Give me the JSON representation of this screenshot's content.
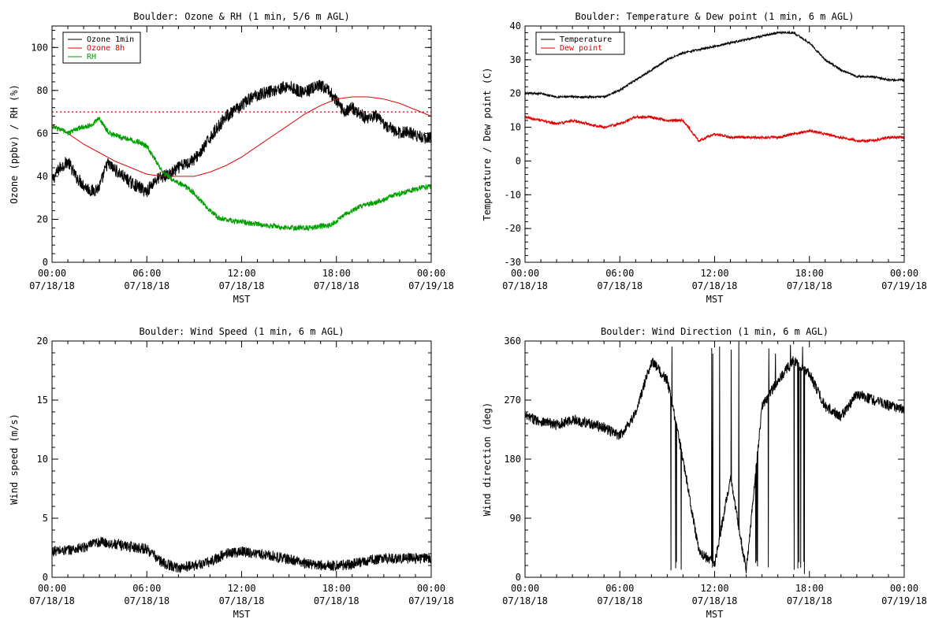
{
  "colors": {
    "ozone1min": "#000000",
    "ozone8h": "#e00000",
    "rh": "#00a000",
    "temperature": "#000000",
    "dewpoint": "#e00000",
    "wind": "#000000",
    "reference": "#e00000"
  },
  "shared": {
    "xticks": [
      {
        "hour": 0,
        "time": "00:00",
        "date": "07/18/18"
      },
      {
        "hour": 6,
        "time": "06:00",
        "date": "07/18/18"
      },
      {
        "hour": 12,
        "time": "12:00",
        "date": "07/18/18"
      },
      {
        "hour": 18,
        "time": "18:00",
        "date": "07/18/18"
      },
      {
        "hour": 24,
        "time": "00:00",
        "date": "07/19/18"
      }
    ],
    "xlabel": "MST",
    "xlim": [
      0,
      24
    ]
  },
  "chart_data": [
    {
      "id": "ozone",
      "type": "line",
      "title": "Boulder: Ozone & RH (1 min, 5/6 m AGL)",
      "ylabel": "Ozone (ppbv) / RH (%)",
      "ylim": [
        0,
        110
      ],
      "yticks": [
        0,
        20,
        40,
        60,
        80,
        100
      ],
      "reference_line": {
        "y": 70,
        "style": "dotted"
      },
      "legend": [
        {
          "name": "Ozone 1min",
          "color": "#000000"
        },
        {
          "name": "Ozone 8h",
          "color": "#e00000"
        },
        {
          "name": "RH",
          "color": "#00a000"
        }
      ],
      "series": [
        {
          "name": "Ozone 1min",
          "color": "#000000",
          "noise": 3,
          "x": [
            0,
            0.5,
            1,
            1.5,
            2,
            2.5,
            3,
            3.5,
            4,
            4.5,
            5,
            5.5,
            6,
            6.5,
            7,
            7.5,
            8,
            8.5,
            9,
            9.5,
            10,
            10.5,
            11,
            11.5,
            12,
            12.5,
            13,
            13.5,
            14,
            14.5,
            15,
            15.5,
            16,
            16.5,
            17,
            17.5,
            18,
            18.5,
            19,
            19.5,
            20,
            20.5,
            21,
            21.5,
            22,
            22.5,
            23,
            23.5,
            24
          ],
          "y": [
            38,
            44,
            47,
            40,
            36,
            33,
            35,
            46,
            43,
            40,
            37,
            35,
            33,
            38,
            40,
            41,
            44,
            46,
            48,
            52,
            58,
            63,
            68,
            70,
            73,
            76,
            78,
            79,
            80,
            81,
            82,
            80,
            79,
            81,
            82,
            80,
            75,
            70,
            72,
            69,
            67,
            68,
            64,
            62,
            60,
            61,
            59,
            58,
            58
          ]
        },
        {
          "name": "Ozone 8h",
          "color": "#e00000",
          "noise": 0,
          "x": [
            0,
            1,
            2,
            3,
            4,
            5,
            6,
            7,
            8,
            9,
            10,
            11,
            12,
            13,
            14,
            15,
            16,
            17,
            18,
            19,
            20,
            21,
            22,
            23,
            24
          ],
          "y": [
            64,
            60,
            55,
            51,
            47,
            44,
            41,
            40,
            40,
            40,
            42,
            45,
            49,
            54,
            59,
            64,
            69,
            73,
            76,
            77,
            77,
            76,
            74,
            71,
            68
          ]
        },
        {
          "name": "RH",
          "color": "#00a000",
          "noise": 1.2,
          "x": [
            0,
            0.5,
            1,
            1.5,
            2,
            2.5,
            3,
            3.5,
            4,
            4.5,
            5,
            5.5,
            6,
            6.5,
            7,
            7.5,
            8,
            8.5,
            9,
            9.5,
            10,
            10.5,
            11,
            11.5,
            12,
            12.5,
            13,
            13.5,
            14,
            14.5,
            15,
            15.5,
            16,
            16.5,
            17,
            17.5,
            18,
            18.5,
            19,
            19.5,
            20,
            20.5,
            21,
            21.5,
            22,
            22.5,
            23,
            23.5,
            24
          ],
          "y": [
            63,
            62,
            60,
            62,
            63,
            64,
            67,
            61,
            59,
            58,
            57,
            56,
            54,
            48,
            42,
            39,
            37,
            35,
            32,
            28,
            24,
            21,
            20,
            19,
            19,
            18,
            18,
            17,
            17,
            16,
            16,
            16,
            16,
            16,
            17,
            17,
            19,
            22,
            24,
            26,
            27,
            28,
            29,
            31,
            32,
            33,
            34,
            35,
            35
          ]
        }
      ]
    },
    {
      "id": "temp",
      "type": "line",
      "title": "Boulder: Temperature & Dew point (1 min, 6 m AGL)",
      "ylabel": "Temperature / Dew point (C)",
      "ylim": [
        -30,
        40
      ],
      "yticks": [
        -30,
        -20,
        -10,
        0,
        10,
        20,
        30,
        40
      ],
      "legend": [
        {
          "name": "Temperature",
          "color": "#000000"
        },
        {
          "name": "Dew point",
          "color": "#e00000"
        }
      ],
      "series": [
        {
          "name": "Temperature",
          "color": "#000000",
          "noise": 0.3,
          "x": [
            0,
            1,
            2,
            3,
            4,
            5,
            6,
            7,
            8,
            9,
            10,
            11,
            12,
            13,
            14,
            15,
            16,
            17,
            18,
            19,
            20,
            21,
            22,
            23,
            24
          ],
          "y": [
            20,
            20,
            19,
            19,
            19,
            19,
            21,
            24,
            27,
            30,
            32,
            33,
            34,
            35,
            36,
            37,
            38,
            38,
            35,
            30,
            27,
            25,
            25,
            24,
            24
          ]
        },
        {
          "name": "Dew point",
          "color": "#e00000",
          "noise": 0.4,
          "x": [
            0,
            1,
            2,
            3,
            4,
            5,
            6,
            7,
            8,
            9,
            10,
            11,
            12,
            13,
            14,
            15,
            16,
            17,
            18,
            19,
            20,
            21,
            22,
            23,
            24
          ],
          "y": [
            13,
            12,
            11,
            12,
            11,
            10,
            11,
            13,
            13,
            12,
            12,
            6,
            8,
            7,
            7,
            7,
            7,
            8,
            9,
            8,
            7,
            6,
            6,
            7,
            7
          ]
        }
      ]
    },
    {
      "id": "wspd",
      "type": "line",
      "title": "Boulder: Wind Speed (1 min, 6 m AGL)",
      "ylabel": "Wind speed (m/s)",
      "ylim": [
        0,
        20
      ],
      "yticks": [
        0,
        5,
        10,
        15,
        20
      ],
      "legend": [],
      "series": [
        {
          "name": "",
          "color": "#000000",
          "noise": 0.45,
          "x": [
            0,
            1,
            2,
            3,
            4,
            5,
            6,
            7,
            8,
            9,
            10,
            11,
            12,
            13,
            14,
            15,
            16,
            17,
            18,
            19,
            20,
            21,
            22,
            23,
            24
          ],
          "y": [
            2.2,
            2.3,
            2.5,
            3,
            2.8,
            2.6,
            2.4,
            1.2,
            0.8,
            1.0,
            1.3,
            2.0,
            2.2,
            2.0,
            1.8,
            1.5,
            1.2,
            1.0,
            1.0,
            1.1,
            1.4,
            1.6,
            1.6,
            1.6,
            1.6
          ]
        }
      ]
    },
    {
      "id": "wdir",
      "type": "line",
      "title": "Boulder: Wind Direction (1 min, 6 m AGL)",
      "ylabel": "Wind direction (deg)",
      "ylim": [
        0,
        360
      ],
      "yticks": [
        0,
        90,
        180,
        270,
        360
      ],
      "legend": [],
      "series": [
        {
          "name": "",
          "color": "#000000",
          "noise": 8,
          "x": [
            0,
            1,
            2,
            3,
            4,
            5,
            6,
            7,
            8,
            9,
            10,
            11,
            12,
            13,
            14,
            15,
            16,
            17,
            18,
            19,
            20,
            21,
            22,
            23,
            24
          ],
          "y": [
            245,
            238,
            232,
            240,
            235,
            228,
            215,
            250,
            330,
            300,
            180,
            40,
            20,
            150,
            10,
            260,
            300,
            330,
            310,
            260,
            245,
            280,
            270,
            262,
            255
          ]
        }
      ]
    }
  ]
}
